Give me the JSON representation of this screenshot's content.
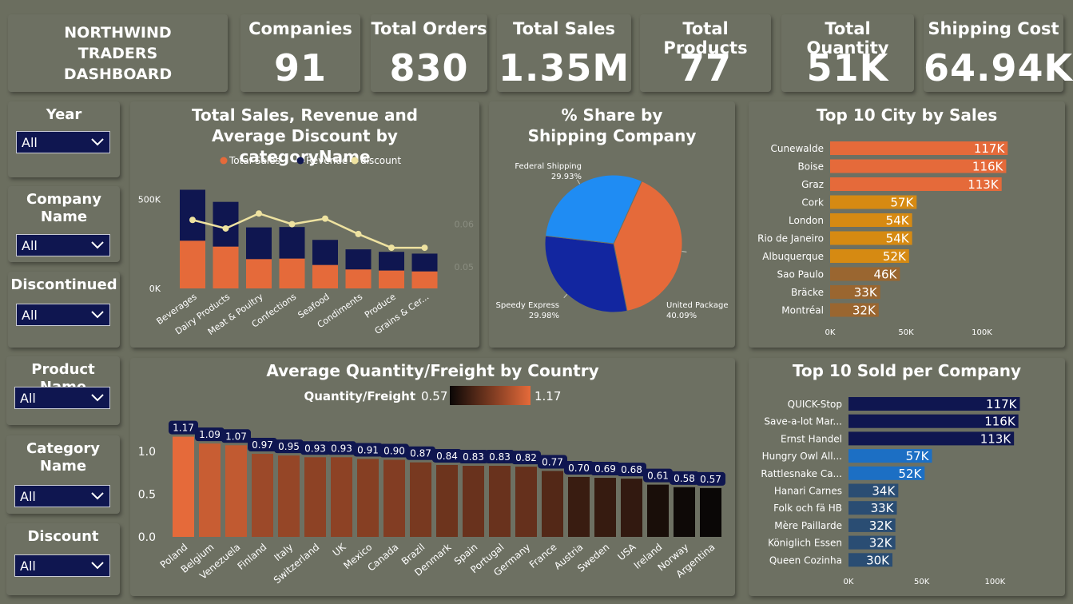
{
  "dashboard_title": [
    "NORTHWIND",
    "TRADERS",
    "DASHBOARD"
  ],
  "kpis": [
    {
      "label": "Companies",
      "value": "91"
    },
    {
      "label": "Total Orders",
      "value": "830"
    },
    {
      "label": "Total Sales",
      "value": "1.35M"
    },
    {
      "label": "Total Products",
      "value": "77"
    },
    {
      "label": "Total Quantity",
      "value": "51K"
    },
    {
      "label": "Shipping Cost",
      "value": "64.94K"
    }
  ],
  "slicers": [
    {
      "label": "Year",
      "value": "All"
    },
    {
      "label": "Company Name",
      "value": "All"
    },
    {
      "label": "Discontinued",
      "value": "All"
    },
    {
      "label": "Product Name",
      "value": "All"
    },
    {
      "label": "Category Name",
      "value": "All"
    },
    {
      "label": "Discount",
      "value": "All"
    }
  ],
  "colors": {
    "orange": "#e56a3a",
    "navy": "#0f1650",
    "cream": "#eee2a0",
    "amber": "#d68a12",
    "brown": "#9a6630",
    "royal": "#1c6fc4",
    "blue_gray": "#2a4d73",
    "sky": "#1f8cf3",
    "pie_navy": "#1226a0"
  },
  "chart_data": [
    {
      "type": "bar",
      "title": "Total Sales, Revenue and Average Discount by categoryName",
      "legend": [
        "Total Sales",
        "Revenue",
        "discount"
      ],
      "categories": [
        "Beverages",
        "Dairy Products",
        "Meat & Poultry",
        "Confections",
        "Seafood",
        "Condiments",
        "Produce",
        "Grains & Cer..."
      ],
      "series": [
        {
          "name": "Total Sales",
          "values": [
            267000,
            234000,
            164000,
            167000,
            131000,
            106000,
            100000,
            95000
          ]
        },
        {
          "name": "Revenue",
          "values": [
            286000,
            251000,
            178000,
            177000,
            141000,
            113000,
            105000,
            100000
          ]
        },
        {
          "name": "discount",
          "values": [
            0.061,
            0.059,
            0.0625,
            0.06,
            0.0613,
            0.0577,
            0.0545,
            0.0545
          ]
        }
      ],
      "y_ticks": [
        "0K",
        "500K"
      ],
      "y2_ticks": [
        "0.05",
        "0.06"
      ],
      "ylim": [
        0,
        600000
      ],
      "y2lim": [
        0.045,
        0.07
      ],
      "legend_position": "top"
    },
    {
      "type": "pie",
      "title": "% Share by Shipping Company",
      "slices": [
        {
          "name": "United Package",
          "value": 40.09,
          "label": "40.09%"
        },
        {
          "name": "Speedy Express",
          "value": 29.98,
          "label": "29.98%"
        },
        {
          "name": "Federal Shipping",
          "value": 29.93,
          "label": "29.93%"
        }
      ]
    },
    {
      "type": "bar",
      "orientation": "horizontal",
      "title": "Top 10 City by Sales",
      "categories": [
        "Cunewalde",
        "Boise",
        "Graz",
        "Cork",
        "London",
        "Rio de Janeiro",
        "Albuquerque",
        "Sao Paulo",
        "Bräcke",
        "Montréal"
      ],
      "values": [
        117000,
        116000,
        113000,
        57000,
        54000,
        54000,
        52000,
        46000,
        33000,
        32000
      ],
      "labels": [
        "117K",
        "116K",
        "113K",
        "57K",
        "54K",
        "54K",
        "52K",
        "46K",
        "33K",
        "32K"
      ],
      "x_ticks": [
        "0K",
        "50K",
        "100K"
      ],
      "xlim": [
        0,
        120000
      ]
    },
    {
      "type": "bar",
      "title": "Average Quantity/Freight by Country",
      "gradient_legend": {
        "label": "Quantity/Freight",
        "min": "0.57",
        "max": "1.17"
      },
      "categories": [
        "Poland",
        "Belgium",
        "Venezuela",
        "Finland",
        "Italy",
        "Switzerland",
        "UK",
        "Mexico",
        "Canada",
        "Brazil",
        "Denmark",
        "Spain",
        "Portugal",
        "Germany",
        "France",
        "Austria",
        "Sweden",
        "USA",
        "Ireland",
        "Norway",
        "Argentina"
      ],
      "values": [
        1.17,
        1.09,
        1.07,
        0.97,
        0.95,
        0.93,
        0.93,
        0.91,
        0.9,
        0.87,
        0.84,
        0.83,
        0.83,
        0.82,
        0.77,
        0.7,
        0.69,
        0.68,
        0.61,
        0.58,
        0.57
      ],
      "labels": [
        "1.17",
        "1.09",
        "1.07",
        "0.97",
        "0.95",
        "0.93",
        "0.93",
        "0.91",
        "0.90",
        "0.87",
        "0.84",
        "0.83",
        "0.83",
        "0.82",
        "0.77",
        "0.70",
        "0.69",
        "0.68",
        "0.61",
        "0.58",
        "0.57"
      ],
      "y_ticks": [
        "0.0",
        "0.5",
        "1.0"
      ],
      "ylim": [
        0,
        1.25
      ]
    },
    {
      "type": "bar",
      "orientation": "horizontal",
      "title": "Top 10 Sold per Company",
      "categories": [
        "QUICK-Stop",
        "Save-a-lot Mar...",
        "Ernst Handel",
        "Hungry Owl All...",
        "Rattlesnake Ca...",
        "Hanari Carnes",
        "Folk och fä HB",
        "Mère Paillarde",
        "Königlich Essen",
        "Queen Cozinha"
      ],
      "values": [
        117000,
        116000,
        113000,
        57000,
        52000,
        34000,
        33000,
        32000,
        32000,
        30000
      ],
      "labels": [
        "117K",
        "116K",
        "113K",
        "57K",
        "52K",
        "34K",
        "33K",
        "32K",
        "32K",
        "30K"
      ],
      "x_ticks": [
        "0K",
        "50K",
        "100K"
      ],
      "xlim": [
        0,
        120000
      ]
    }
  ]
}
